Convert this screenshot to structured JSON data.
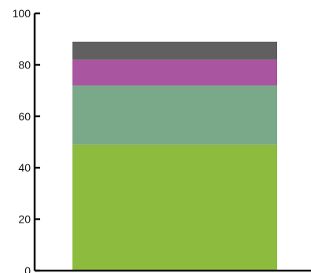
{
  "chart_data": {
    "type": "bar",
    "stacked": true,
    "categories": [
      ""
    ],
    "series": [
      {
        "values": [
          49
        ],
        "color": "#8dbb3e"
      },
      {
        "values": [
          23
        ],
        "color": "#7aa98a"
      },
      {
        "values": [
          10
        ],
        "color": "#a955a0"
      },
      {
        "values": [
          7
        ],
        "color": "#616061"
      }
    ],
    "ylim": [
      0,
      100
    ],
    "yticks": [
      0,
      20,
      40,
      60,
      80,
      100
    ],
    "title": "",
    "xlabel": "",
    "ylabel": "",
    "grid": false,
    "legend": "none"
  }
}
